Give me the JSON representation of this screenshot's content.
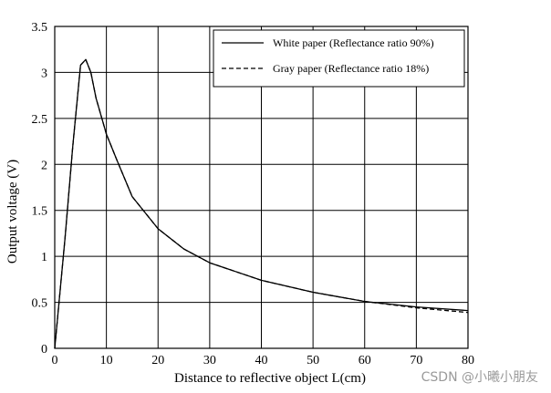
{
  "chart_data": {
    "type": "line",
    "title": "",
    "xlabel": "Distance to reflective object L(cm)",
    "ylabel": "Output voltage (V)",
    "xlim": [
      0,
      80
    ],
    "ylim": [
      0,
      3.5
    ],
    "x_ticks": [
      "0",
      "10",
      "20",
      "30",
      "40",
      "50",
      "60",
      "70",
      "80"
    ],
    "y_ticks": [
      "0",
      "0.5",
      "1",
      "1.5",
      "2",
      "2.5",
      "3",
      "3.5"
    ],
    "grid": true,
    "legend_position": "top-right",
    "series": [
      {
        "name": "White paper (Reflectance ratio 90%)",
        "style": "solid",
        "x": [
          0,
          2,
          3.5,
          5,
          6,
          7,
          8,
          10,
          12,
          15,
          20,
          25,
          30,
          40,
          50,
          60,
          70,
          80
        ],
        "y": [
          0,
          1.2,
          2.2,
          3.08,
          3.14,
          3.0,
          2.72,
          2.33,
          2.05,
          1.65,
          1.3,
          1.08,
          0.93,
          0.74,
          0.61,
          0.51,
          0.45,
          0.41
        ]
      },
      {
        "name": "Gray paper (Reflectance ratio 18%)",
        "style": "dashed",
        "x": [
          0,
          2,
          3.5,
          5,
          6,
          7,
          8,
          10,
          12,
          15,
          20,
          25,
          30,
          40,
          50,
          60,
          70,
          80
        ],
        "y": [
          0,
          1.2,
          2.2,
          3.08,
          3.14,
          3.0,
          2.72,
          2.33,
          2.05,
          1.65,
          1.3,
          1.08,
          0.93,
          0.74,
          0.61,
          0.51,
          0.44,
          0.39
        ]
      }
    ]
  },
  "watermark": "CSDN @小曦小朋友"
}
